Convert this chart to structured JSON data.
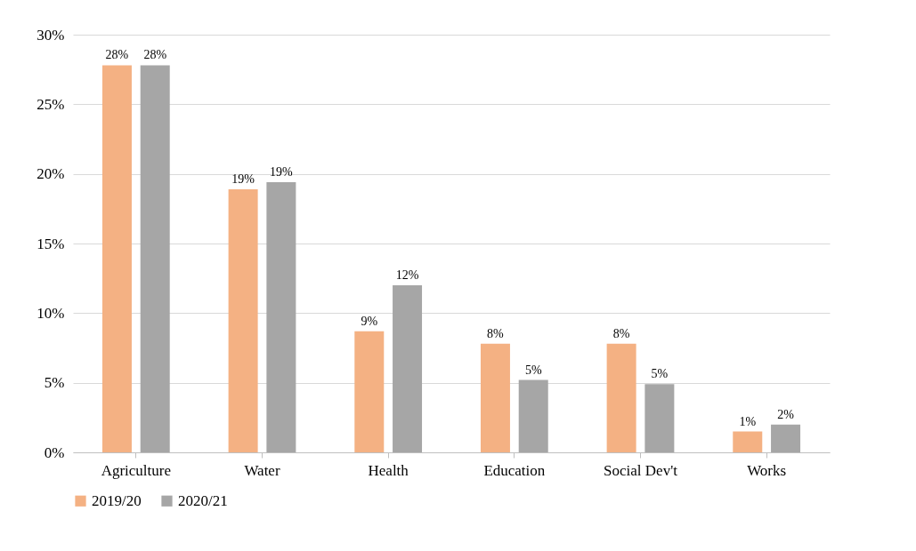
{
  "chart_data": {
    "type": "bar",
    "categories": [
      "Agriculture",
      "Water",
      "Health",
      "Education",
      "Social Dev't",
      "Works"
    ],
    "series": [
      {
        "name": "2019/20",
        "color": "#f4b183",
        "values": [
          27.8,
          18.9,
          8.7,
          7.8,
          7.8,
          1.5
        ],
        "value_labels": [
          "28%",
          "19%",
          "9%",
          "8%",
          "8%",
          "1%"
        ]
      },
      {
        "name": "2020/21",
        "color": "#a6a6a6",
        "values": [
          27.8,
          19.4,
          12.0,
          5.2,
          4.9,
          2.0
        ],
        "value_labels": [
          "28%",
          "19%",
          "12%",
          "5%",
          "5%",
          "2%"
        ]
      }
    ],
    "ylim": [
      0,
      30
    ],
    "yticks": [
      {
        "value": 0,
        "label": "0%"
      },
      {
        "value": 5,
        "label": "5%"
      },
      {
        "value": 10,
        "label": "10%"
      },
      {
        "value": 15,
        "label": "15%"
      },
      {
        "value": 20,
        "label": "20%"
      },
      {
        "value": 25,
        "label": "25%"
      },
      {
        "value": 30,
        "label": "30%"
      }
    ],
    "grid": "y",
    "legend": "bottom"
  }
}
